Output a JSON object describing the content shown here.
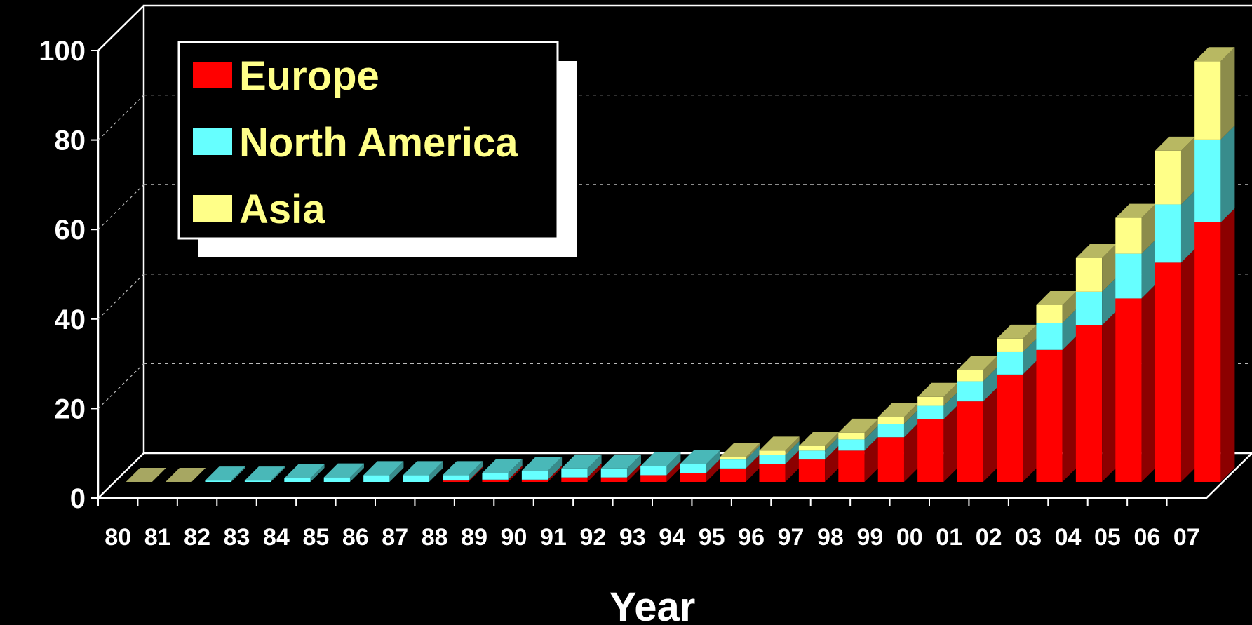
{
  "chart_data": {
    "type": "bar",
    "stacked": true,
    "three_d": true,
    "title": "",
    "xlabel": "Year",
    "ylabel": "",
    "ylim": [
      0,
      100
    ],
    "yticks": [
      0,
      20,
      40,
      60,
      80,
      100
    ],
    "grid": true,
    "legend_position": "top-left",
    "categories": [
      "80",
      "81",
      "82",
      "83",
      "84",
      "85",
      "86",
      "87",
      "88",
      "89",
      "90",
      "91",
      "92",
      "93",
      "94",
      "95",
      "96",
      "97",
      "98",
      "99",
      "00",
      "01",
      "02",
      "03",
      "04",
      "05",
      "06",
      "07"
    ],
    "series": [
      {
        "name": "Europe",
        "color": "#ff0000",
        "values": [
          0,
          0,
          0,
          0,
          0,
          0,
          0,
          0,
          0.3,
          0.5,
          0.5,
          1,
          1,
          1.5,
          2,
          3,
          4,
          5,
          7,
          10,
          14,
          18,
          24,
          29.5,
          35,
          41,
          49,
          58
        ]
      },
      {
        "name": "North America",
        "color": "#66ffff",
        "values": [
          0,
          0,
          0.3,
          0.3,
          0.8,
          1,
          1.5,
          1.5,
          1.2,
          1.5,
          2,
          2,
          2,
          2,
          2,
          2,
          2,
          2,
          2.5,
          3,
          3,
          4.5,
          5,
          6,
          7.5,
          10,
          13,
          18.5
        ]
      },
      {
        "name": "Asia",
        "color": "#ffff88",
        "values": [
          0,
          0,
          0,
          0,
          0,
          0,
          0,
          0,
          0,
          0,
          0,
          0,
          0,
          0,
          0,
          0.5,
          1,
          1,
          1.5,
          1.5,
          2,
          2.5,
          3,
          4,
          7.5,
          8,
          12,
          17.5
        ]
      }
    ]
  }
}
